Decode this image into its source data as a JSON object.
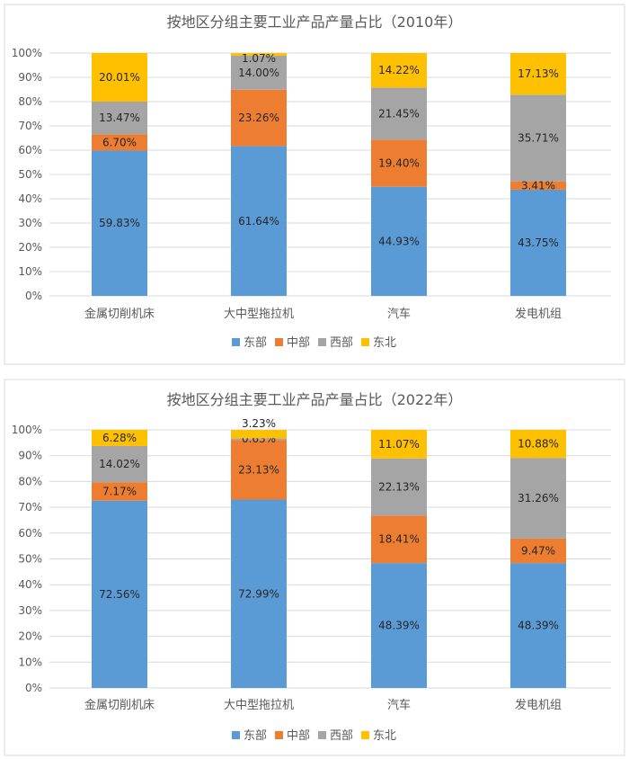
{
  "chart_data": [
    {
      "type": "bar",
      "stacked": true,
      "title": "按地区分组主要工业产品产量占比（2010年）",
      "categories": [
        "金属切削机床",
        "大中型拖拉机",
        "汽车",
        "发电机组"
      ],
      "series": [
        {
          "name": "东部",
          "color": "#5b9bd5",
          "values": [
            59.83,
            61.64,
            44.93,
            43.75
          ]
        },
        {
          "name": "中部",
          "color": "#ed7d31",
          "values": [
            6.7,
            23.26,
            19.4,
            3.41
          ]
        },
        {
          "name": "西部",
          "color": "#a5a5a5",
          "values": [
            13.47,
            14.0,
            21.45,
            35.71
          ]
        },
        {
          "name": "东北",
          "color": "#ffc000",
          "values": [
            20.01,
            1.07,
            14.22,
            17.13
          ]
        }
      ],
      "yticks": [
        "0%",
        "10%",
        "20%",
        "30%",
        "40%",
        "50%",
        "60%",
        "70%",
        "80%",
        "90%",
        "100%"
      ],
      "ylim": [
        0,
        100
      ],
      "grid": true,
      "legend": "bottom"
    },
    {
      "type": "bar",
      "stacked": true,
      "title": "按地区分组主要工业产品产量占比（2022年）",
      "categories": [
        "金属切削机床",
        "大中型拖拉机",
        "汽车",
        "发电机组"
      ],
      "series": [
        {
          "name": "东部",
          "color": "#5b9bd5",
          "values": [
            72.56,
            72.99,
            48.39,
            48.39
          ]
        },
        {
          "name": "中部",
          "color": "#ed7d31",
          "values": [
            7.17,
            23.13,
            18.41,
            9.47
          ]
        },
        {
          "name": "西部",
          "color": "#a5a5a5",
          "values": [
            14.02,
            0.63,
            22.13,
            31.26
          ]
        },
        {
          "name": "东北",
          "color": "#ffc000",
          "values": [
            6.28,
            3.23,
            11.07,
            10.88
          ]
        }
      ],
      "yticks": [
        "0%",
        "10%",
        "20%",
        "30%",
        "40%",
        "50%",
        "60%",
        "70%",
        "80%",
        "90%",
        "100%"
      ],
      "ylim": [
        0,
        100
      ],
      "grid": true,
      "legend": "bottom"
    }
  ]
}
